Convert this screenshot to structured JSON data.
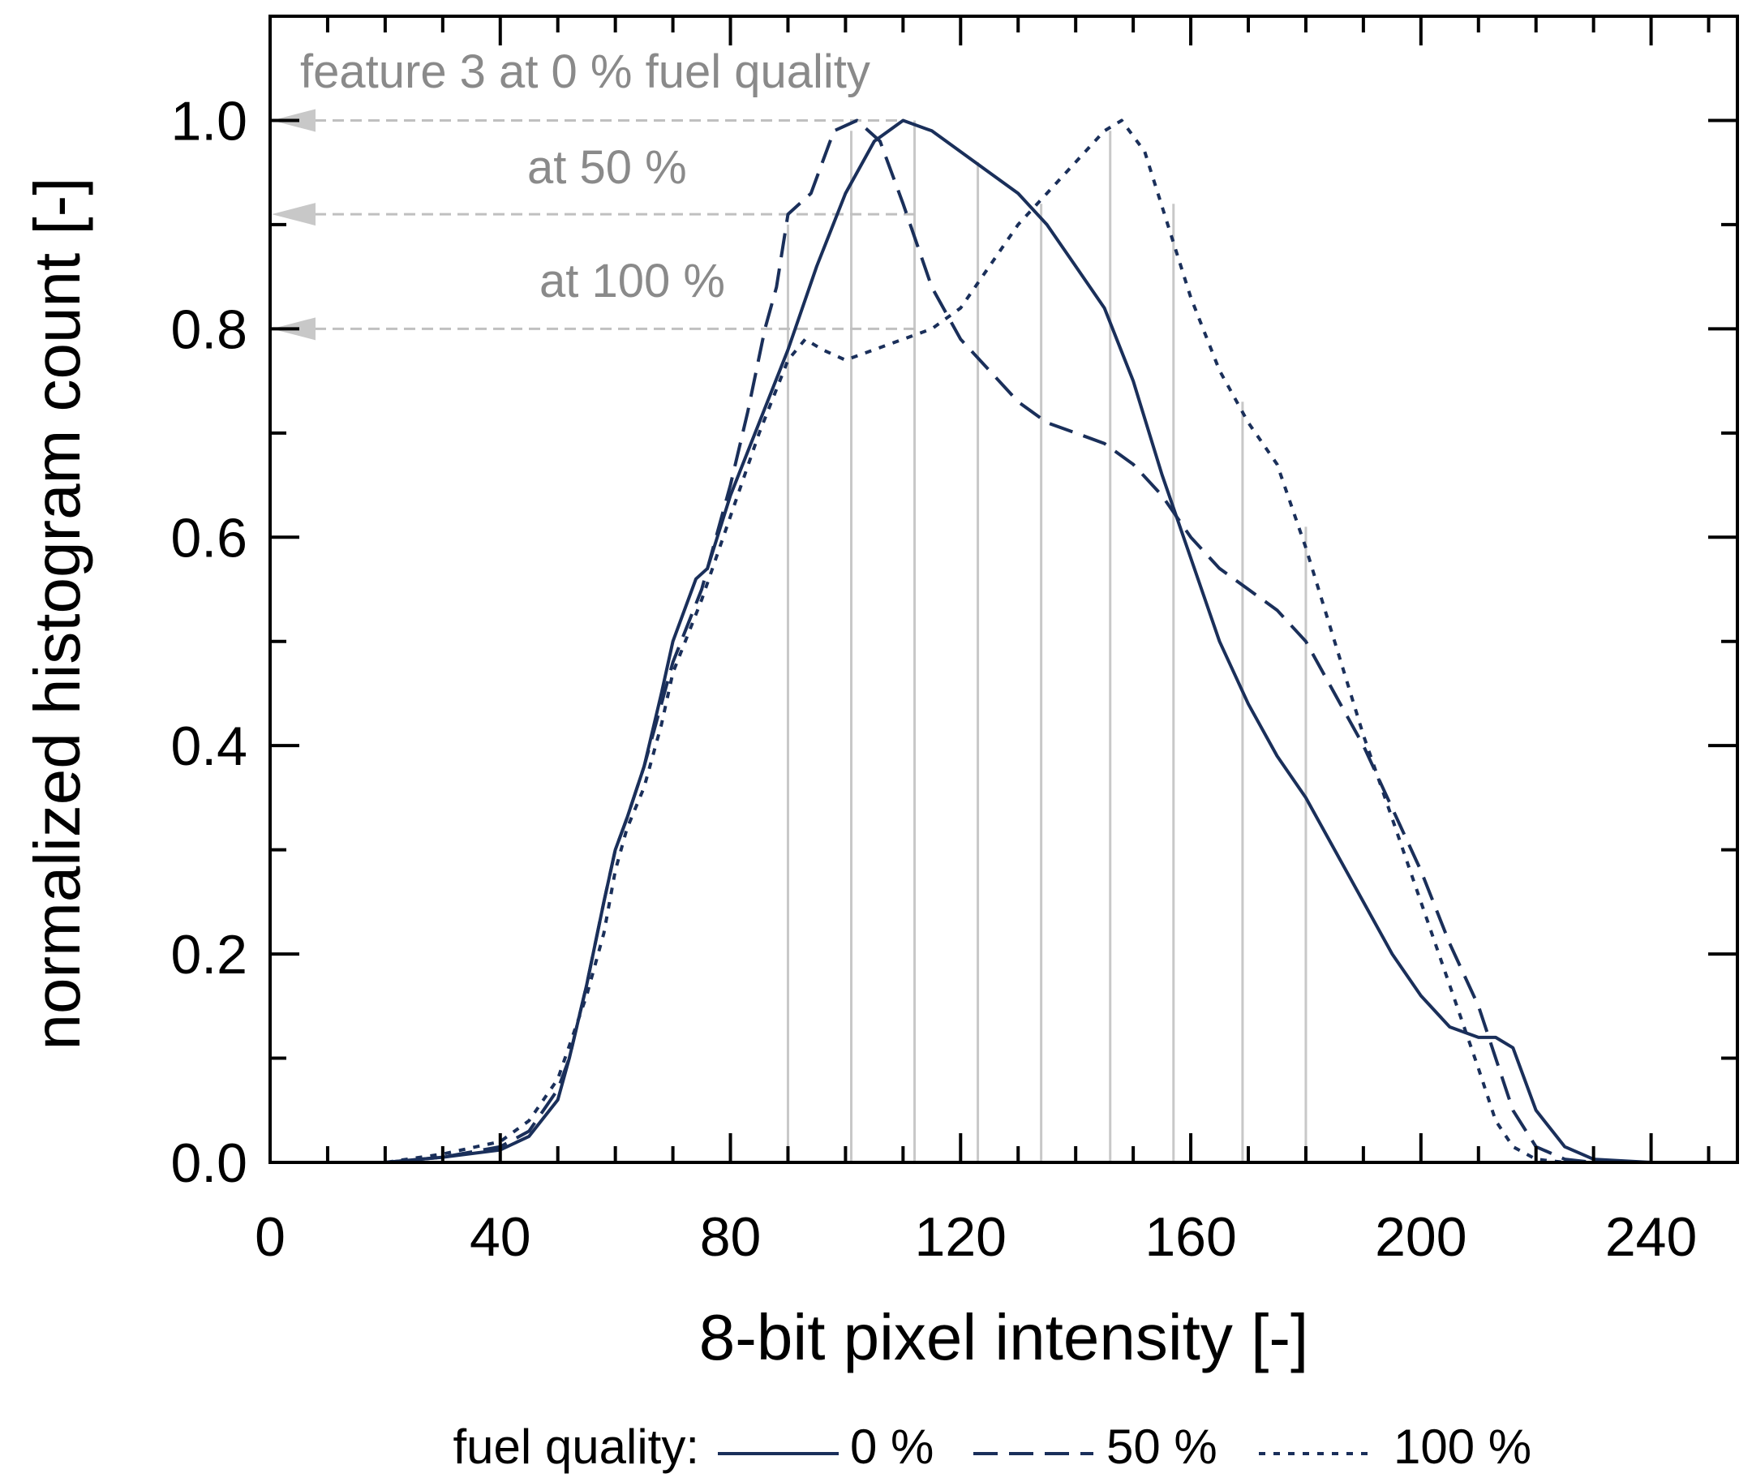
{
  "chart_data": {
    "type": "line",
    "xlabel": "8-bit pixel intensity [-]",
    "ylabel": "normalized histogram count [-]",
    "xlim": [
      0,
      255
    ],
    "ylim": [
      0,
      1.1
    ],
    "x_ticks": [
      0,
      40,
      80,
      120,
      160,
      200,
      240
    ],
    "y_ticks": [
      0.0,
      0.2,
      0.4,
      0.6,
      0.8,
      1.0
    ],
    "x_tick_labels": [
      "0",
      "40",
      "80",
      "120",
      "160",
      "200",
      "240"
    ],
    "y_tick_labels": [
      "0.0",
      "0.2",
      "0.4",
      "0.6",
      "0.8",
      "1.0"
    ],
    "grid": false,
    "legend": {
      "title": "fuel quality:",
      "position": "bottom",
      "entries": [
        "0 %",
        "50 %",
        "100 %"
      ]
    },
    "series": [
      {
        "name": "0 %",
        "style": "solid",
        "points": [
          [
            0,
            0
          ],
          [
            20,
            0
          ],
          [
            30,
            0.005
          ],
          [
            40,
            0.012
          ],
          [
            45,
            0.025
          ],
          [
            50,
            0.06
          ],
          [
            52,
            0.1
          ],
          [
            55,
            0.17
          ],
          [
            58,
            0.25
          ],
          [
            60,
            0.3
          ],
          [
            62,
            0.33
          ],
          [
            65,
            0.38
          ],
          [
            68,
            0.45
          ],
          [
            70,
            0.5
          ],
          [
            74,
            0.56
          ],
          [
            76,
            0.57
          ],
          [
            80,
            0.64
          ],
          [
            85,
            0.71
          ],
          [
            90,
            0.78
          ],
          [
            95,
            0.86
          ],
          [
            100,
            0.93
          ],
          [
            105,
            0.98
          ],
          [
            110,
            1.0
          ],
          [
            115,
            0.99
          ],
          [
            120,
            0.97
          ],
          [
            125,
            0.95
          ],
          [
            130,
            0.93
          ],
          [
            135,
            0.9
          ],
          [
            140,
            0.86
          ],
          [
            145,
            0.82
          ],
          [
            150,
            0.75
          ],
          [
            155,
            0.66
          ],
          [
            160,
            0.58
          ],
          [
            165,
            0.5
          ],
          [
            170,
            0.44
          ],
          [
            175,
            0.39
          ],
          [
            180,
            0.35
          ],
          [
            185,
            0.3
          ],
          [
            190,
            0.25
          ],
          [
            195,
            0.2
          ],
          [
            200,
            0.16
          ],
          [
            205,
            0.13
          ],
          [
            210,
            0.12
          ],
          [
            213,
            0.12
          ],
          [
            216,
            0.11
          ],
          [
            220,
            0.05
          ],
          [
            225,
            0.015
          ],
          [
            230,
            0.003
          ],
          [
            240,
            0
          ],
          [
            255,
            0
          ]
        ]
      },
      {
        "name": "50 %",
        "style": "dashed",
        "points": [
          [
            0,
            0
          ],
          [
            20,
            0
          ],
          [
            30,
            0.005
          ],
          [
            40,
            0.015
          ],
          [
            45,
            0.03
          ],
          [
            50,
            0.07
          ],
          [
            52,
            0.1
          ],
          [
            55,
            0.17
          ],
          [
            58,
            0.25
          ],
          [
            60,
            0.3
          ],
          [
            62,
            0.33
          ],
          [
            65,
            0.38
          ],
          [
            68,
            0.44
          ],
          [
            70,
            0.48
          ],
          [
            75,
            0.55
          ],
          [
            80,
            0.65
          ],
          [
            83,
            0.72
          ],
          [
            86,
            0.8
          ],
          [
            88,
            0.84
          ],
          [
            90,
            0.91
          ],
          [
            94,
            0.93
          ],
          [
            98,
            0.99
          ],
          [
            102,
            1.0
          ],
          [
            106,
            0.98
          ],
          [
            110,
            0.92
          ],
          [
            115,
            0.84
          ],
          [
            120,
            0.79
          ],
          [
            125,
            0.76
          ],
          [
            130,
            0.73
          ],
          [
            135,
            0.71
          ],
          [
            140,
            0.7
          ],
          [
            145,
            0.69
          ],
          [
            150,
            0.67
          ],
          [
            155,
            0.64
          ],
          [
            160,
            0.6
          ],
          [
            165,
            0.57
          ],
          [
            170,
            0.55
          ],
          [
            175,
            0.53
          ],
          [
            180,
            0.5
          ],
          [
            185,
            0.45
          ],
          [
            190,
            0.4
          ],
          [
            195,
            0.34
          ],
          [
            200,
            0.28
          ],
          [
            205,
            0.21
          ],
          [
            210,
            0.15
          ],
          [
            213,
            0.1
          ],
          [
            216,
            0.05
          ],
          [
            220,
            0.015
          ],
          [
            225,
            0.003
          ],
          [
            230,
            0
          ],
          [
            255,
            0
          ]
        ]
      },
      {
        "name": "100 %",
        "style": "dotted",
        "points": [
          [
            0,
            0
          ],
          [
            20,
            0
          ],
          [
            30,
            0.008
          ],
          [
            40,
            0.02
          ],
          [
            45,
            0.04
          ],
          [
            50,
            0.08
          ],
          [
            55,
            0.16
          ],
          [
            58,
            0.22
          ],
          [
            60,
            0.28
          ],
          [
            62,
            0.32
          ],
          [
            65,
            0.36
          ],
          [
            68,
            0.42
          ],
          [
            70,
            0.47
          ],
          [
            75,
            0.54
          ],
          [
            80,
            0.62
          ],
          [
            85,
            0.7
          ],
          [
            90,
            0.77
          ],
          [
            93,
            0.79
          ],
          [
            96,
            0.78
          ],
          [
            100,
            0.77
          ],
          [
            105,
            0.78
          ],
          [
            110,
            0.79
          ],
          [
            115,
            0.8
          ],
          [
            120,
            0.82
          ],
          [
            125,
            0.86
          ],
          [
            130,
            0.9
          ],
          [
            135,
            0.93
          ],
          [
            140,
            0.96
          ],
          [
            145,
            0.99
          ],
          [
            148,
            1.0
          ],
          [
            152,
            0.97
          ],
          [
            156,
            0.9
          ],
          [
            160,
            0.83
          ],
          [
            165,
            0.76
          ],
          [
            170,
            0.71
          ],
          [
            175,
            0.67
          ],
          [
            180,
            0.59
          ],
          [
            185,
            0.5
          ],
          [
            190,
            0.41
          ],
          [
            195,
            0.33
          ],
          [
            200,
            0.25
          ],
          [
            205,
            0.17
          ],
          [
            210,
            0.09
          ],
          [
            213,
            0.04
          ],
          [
            216,
            0.015
          ],
          [
            220,
            0.003
          ],
          [
            225,
            0
          ],
          [
            255,
            0
          ]
        ]
      }
    ],
    "vertical_markers": [
      {
        "x": 90,
        "y": 0.9
      },
      {
        "x": 101,
        "y": 0.99
      },
      {
        "x": 112,
        "y": 1.0
      },
      {
        "x": 123,
        "y": 0.96
      },
      {
        "x": 134,
        "y": 0.92
      },
      {
        "x": 146,
        "y": 0.99
      },
      {
        "x": 157,
        "y": 0.92
      },
      {
        "x": 169,
        "y": 0.73
      },
      {
        "x": 180,
        "y": 0.61
      }
    ],
    "annotations": [
      {
        "text": "feature 3 at 0 % fuel quality",
        "y": 1.0,
        "x_from": 110
      },
      {
        "text": "at 50 %",
        "y": 0.91,
        "x_from": 112
      },
      {
        "text": "at 100 %",
        "y": 0.8,
        "x_from": 112
      }
    ],
    "colors": {
      "series": "#1a2f5a",
      "markers": "#c8c8c8",
      "annotation": "#8a8a8a",
      "axis": "#000000"
    }
  }
}
